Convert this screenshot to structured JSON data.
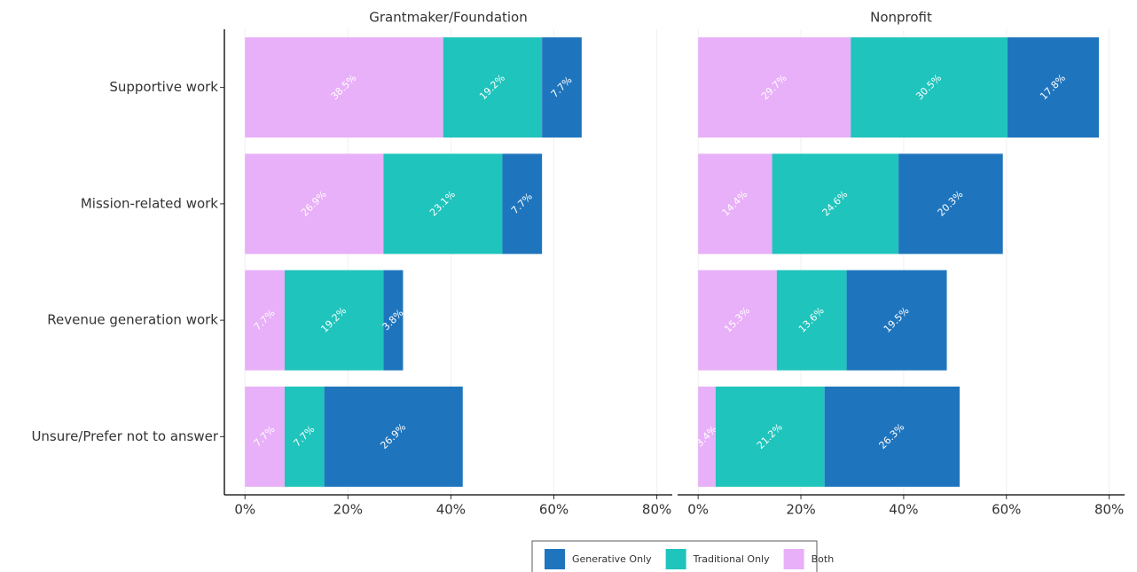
{
  "chart_data": [
    {
      "type": "bar",
      "title": "Grantmaker/Foundation",
      "categories": [
        "Supportive work",
        "Mission-related work",
        "Revenue generation work",
        "Unsure/Prefer not to answer"
      ],
      "series": [
        {
          "name": "Both",
          "color": "#e8b0f8",
          "values": [
            38.5,
            26.9,
            7.7,
            7.7
          ],
          "value_labels": [
            "38.5%",
            "26.9%",
            "7.7%",
            "7.7%"
          ]
        },
        {
          "name": "Traditional Only",
          "color": "#1fc4bc",
          "values": [
            19.2,
            23.1,
            19.2,
            7.7
          ],
          "value_labels": [
            "19.2%",
            "23.1%",
            "19.2%",
            "7.7%"
          ]
        },
        {
          "name": "Generative Only",
          "color": "#1f75bd",
          "values": [
            7.7,
            7.7,
            3.8,
            26.9
          ],
          "value_labels": [
            "7.7%",
            "7.7%",
            "3.8%",
            "26.9%"
          ]
        }
      ],
      "xlim": [
        -4,
        83
      ],
      "xticks": [
        {
          "value": 0,
          "label": "0%"
        },
        {
          "value": 20,
          "label": "20%"
        },
        {
          "value": 40,
          "label": "40%"
        },
        {
          "value": 60,
          "label": "60%"
        },
        {
          "value": 80,
          "label": "80%"
        }
      ],
      "grid": true,
      "legend": "bottom"
    },
    {
      "type": "bar",
      "title": "Nonprofit",
      "series": [
        {
          "color": "#e8b0f8",
          "values": [
            29.7,
            14.4,
            15.3,
            3.4
          ],
          "value_labels": [
            "29.7%",
            "14.4%",
            "15.3%",
            "3.4%"
          ]
        },
        {
          "color": "#1fc4bc",
          "values": [
            30.5,
            24.6,
            13.6,
            21.2
          ],
          "value_labels": [
            "30.5%",
            "24.6%",
            "13.6%",
            "21.2%"
          ]
        },
        {
          "color": "#1f75bd",
          "values": [
            17.8,
            20.3,
            19.5,
            26.3
          ],
          "value_labels": [
            "17.8%",
            "20.3%",
            "19.5%",
            "26.3%"
          ]
        }
      ],
      "xlim": [
        -4,
        83
      ],
      "xticks": [
        {
          "value": 0,
          "label": "0%"
        },
        {
          "value": 20,
          "label": "20%"
        },
        {
          "value": 40,
          "label": "40%"
        },
        {
          "value": 60,
          "label": "60%"
        },
        {
          "value": 80,
          "label": "80%"
        }
      ],
      "grid": true
    }
  ]
}
